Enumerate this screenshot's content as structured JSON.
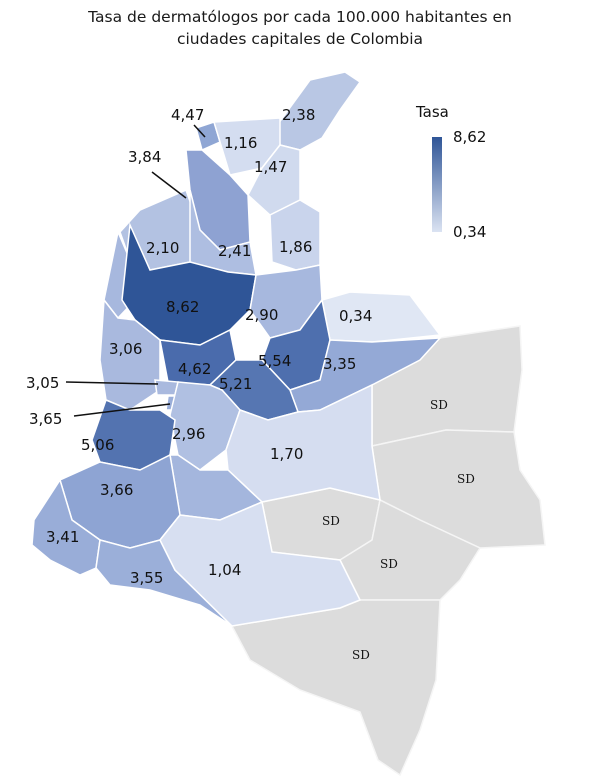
{
  "title_line1": "Tasa de dermatólogos por cada 100.000 habitantes en",
  "title_line2": "ciudades capitales de Colombia",
  "legend": {
    "title": "Tasa",
    "max": "8,62",
    "min": "0,34",
    "color_max": "#2f5597",
    "color_min": "#dbe3f2"
  },
  "no_data_color": "#dcdcdc",
  "values": [
    "4,47",
    "2,38",
    "1,16",
    "1,47",
    "3,84",
    "2,10",
    "2,41",
    "1,86",
    "8,62",
    "2,90",
    "0,34",
    "3,06",
    "5,54",
    "4,62",
    "3,35",
    "3,05",
    "5,21",
    "3,65",
    "2,96",
    "1,70",
    "5,06",
    "3,66",
    "3,41",
    "1,04",
    "3,55"
  ],
  "no_data": [
    "SD",
    "SD",
    "SD",
    "SD",
    "SD"
  ]
}
